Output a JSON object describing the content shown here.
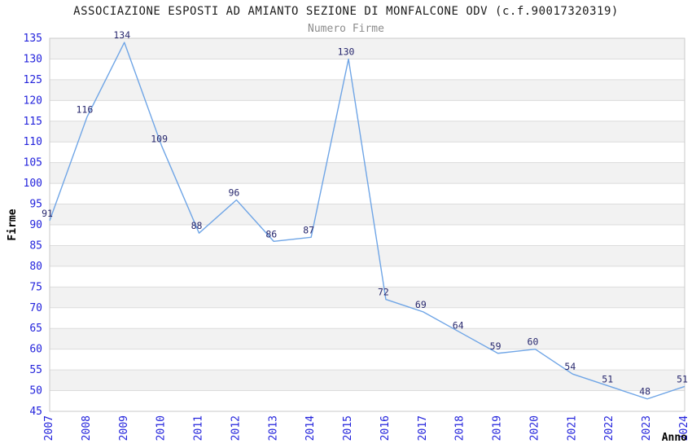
{
  "header": {
    "title": "ASSOCIAZIONE ESPOSTI AD AMIANTO SEZIONE DI MONFALCONE ODV (c.f.90017320319)",
    "subtitle": "Numero Firme"
  },
  "chart_data": {
    "type": "line",
    "title": "ASSOCIAZIONE ESPOSTI AD AMIANTO SEZIONE DI MONFALCONE ODV (c.f.90017320319)",
    "subtitle": "Numero Firme",
    "xlabel": "Anno",
    "ylabel": "Firme",
    "categories": [
      "2007",
      "2008",
      "2009",
      "2010",
      "2011",
      "2012",
      "2013",
      "2014",
      "2015",
      "2016",
      "2017",
      "2018",
      "2019",
      "2020",
      "2021",
      "2022",
      "2023",
      "2024"
    ],
    "values": [
      91,
      116,
      134,
      109,
      88,
      96,
      86,
      87,
      130,
      72,
      69,
      64,
      59,
      60,
      54,
      51,
      48,
      51
    ],
    "ylim": [
      45,
      135
    ],
    "ytick_step": 5,
    "grid": true,
    "legend_position": "none",
    "colors": {
      "line": "#6FA5E6",
      "tick_label": "#2323DC",
      "value_label": "#28286E",
      "axis_title": "#000000",
      "band": "#F2F2F2",
      "gridline": "#DCDCDC",
      "frame": "#C9C9C9",
      "title": "#1c1c1c",
      "subtitle": "#8c8c8c"
    }
  }
}
